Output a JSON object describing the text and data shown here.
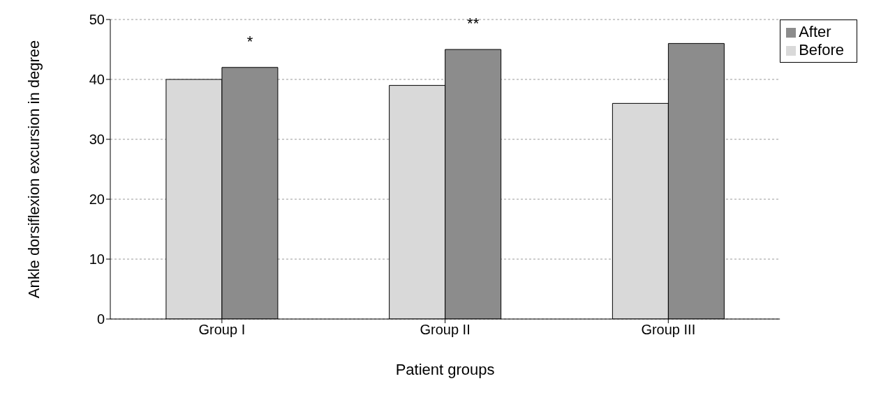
{
  "chart_data": {
    "type": "bar",
    "xlabel": "Patient groups",
    "ylabel": "Ankle dorsiflexion excursion in degree",
    "categories": [
      "Group I",
      "Group II",
      "Group III"
    ],
    "series": [
      {
        "name": "Before",
        "color": "#d9d9d9",
        "values": [
          40,
          39,
          36
        ]
      },
      {
        "name": "After",
        "color": "#8c8c8c",
        "values": [
          42,
          45,
          46
        ]
      }
    ],
    "ylim": [
      0,
      50
    ],
    "yticks": [
      0,
      10,
      20,
      30,
      40,
      50
    ],
    "grid": "y",
    "legend": "top right",
    "annotations": [
      "*",
      "**"
    ]
  }
}
